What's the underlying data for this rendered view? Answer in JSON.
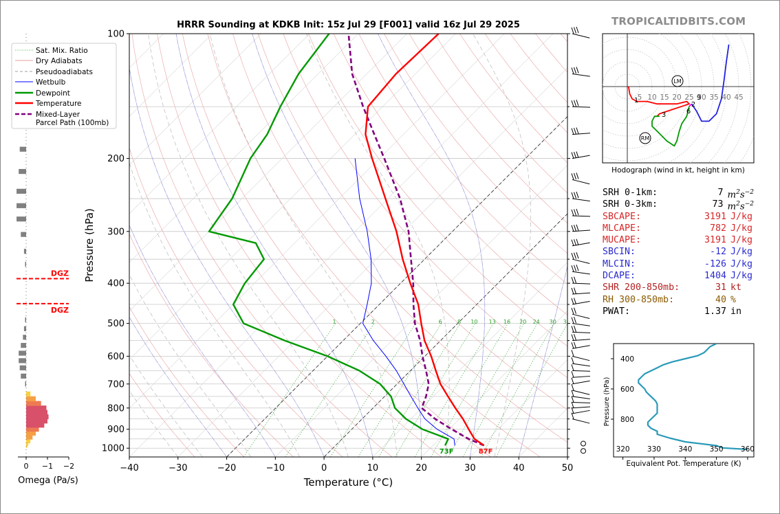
{
  "brand": "TROPICALTIDBITS.COM",
  "params": [
    {
      "label": "SRH 0-1km:",
      "value": "7",
      "unit_base": "m",
      "unit_exp": "2",
      "unit_mid": "s",
      "unit_exp2": "−2",
      "color": "#000000"
    },
    {
      "label": "SRH 0-3km:",
      "value": "73",
      "unit_base": "m",
      "unit_exp": "2",
      "unit_mid": "s",
      "unit_exp2": "−2",
      "color": "#000000"
    },
    {
      "label": "SBCAPE:",
      "value": "3191",
      "unit": "J/kg",
      "color": "#d62728"
    },
    {
      "label": "MLCAPE:",
      "value": "782",
      "unit": "J/kg",
      "color": "#d62728"
    },
    {
      "label": "MUCAPE:",
      "value": "3191",
      "unit": "J/kg",
      "color": "#d62728"
    },
    {
      "label": "SBCIN:",
      "value": "-12",
      "unit": "J/kg",
      "color": "#2a2ad0"
    },
    {
      "label": "MLCIN:",
      "value": "-126",
      "unit": "J/kg",
      "color": "#2a2ad0"
    },
    {
      "label": "DCAPE:",
      "value": "1404",
      "unit": "J/kg",
      "color": "#2a2ad0"
    },
    {
      "label": "SHR 200-850mb:",
      "value": "31",
      "unit": "kt",
      "color": "#b22222"
    },
    {
      "label": "RH 300-850mb:",
      "value": "40",
      "unit": "%",
      "color": "#8b5a00"
    },
    {
      "label": "PWAT:",
      "value": "1.37",
      "unit": "in",
      "color": "#000000"
    }
  ],
  "chart_data": [
    {
      "type": "line",
      "id": "skewt",
      "title": "HRRR Sounding at KDKB Init: 15z Jul 29 [F001] valid 16z Jul 29 2025",
      "xlabel": "Temperature (°C)",
      "ylabel": "Pressure (hPa)",
      "xlim": [
        -40,
        50
      ],
      "ylim": [
        1050,
        100
      ],
      "y_scale": "log",
      "x_ticks": [
        -40,
        -30,
        -20,
        -10,
        0,
        10,
        20,
        30,
        40,
        50
      ],
      "x_tick_labels": [
        "−40",
        "−30",
        "−20",
        "−10",
        "0",
        "10",
        "20",
        "30",
        "40",
        "50"
      ],
      "y_ticks": [
        100,
        200,
        300,
        400,
        500,
        600,
        700,
        800,
        900,
        1000
      ],
      "legend": {
        "position": "top-left",
        "entries": [
          {
            "label": "Sat. Mix. Ratio",
            "color": "#2ca02c",
            "style": "dotted"
          },
          {
            "label": "Dry Adiabats",
            "color": "#e8a0a0",
            "style": "solid"
          },
          {
            "label": "Pseudoadiabats",
            "color": "#a0a0a0",
            "style": "dashed"
          },
          {
            "label": "Wetbulb",
            "color": "#0000ff",
            "style": "solid"
          },
          {
            "label": "Dewpoint",
            "color": "#009900",
            "style": "solid-thick"
          },
          {
            "label": "Temperature",
            "color": "#ff0000",
            "style": "solid-thick"
          },
          {
            "label": "Mixed-Layer\nParcel Path (100mb)",
            "color": "#800080",
            "style": "dashed-thick"
          }
        ]
      },
      "mixing_ratio_labels": [
        "1",
        "2",
        "4",
        "6",
        "8",
        "10",
        "13",
        "16",
        "20",
        "24",
        "30",
        "36"
      ],
      "mixing_ratio_values": [
        1,
        2,
        4,
        6,
        8,
        10,
        13,
        16,
        20,
        24,
        30,
        36
      ],
      "surface_labels": {
        "temperature": "87F",
        "dewpoint": "73F"
      },
      "series": [
        {
          "name": "Temperature",
          "color": "#ff0000",
          "p": [
            985,
            950,
            900,
            850,
            800,
            750,
            700,
            650,
            600,
            550,
            500,
            450,
            400,
            350,
            300,
            250,
            200,
            175,
            150,
            125,
            100
          ],
          "t": [
            30.5,
            27.2,
            24.0,
            20.7,
            16.9,
            13.0,
            8.9,
            5.2,
            1.3,
            -3.3,
            -7.5,
            -12.0,
            -18.0,
            -24.5,
            -31.5,
            -40.5,
            -51.5,
            -57.8,
            -63.0,
            -64.0,
            -63.5
          ]
        },
        {
          "name": "Dewpoint",
          "color": "#009900",
          "p": [
            985,
            950,
            900,
            850,
            800,
            750,
            700,
            650,
            600,
            550,
            500,
            450,
            400,
            350,
            320,
            300,
            250,
            200,
            175,
            150,
            125,
            100
          ],
          "t": [
            22.5,
            21.8,
            14.5,
            9.0,
            4.5,
            1.3,
            -3.5,
            -10.5,
            -20.0,
            -32.0,
            -44.0,
            -50.0,
            -52.0,
            -53.0,
            -58.0,
            -70.0,
            -72.0,
            -76.5,
            -78.0,
            -81.0,
            -84.0,
            -86.0
          ]
        },
        {
          "name": "Wetbulb",
          "color": "#0000ff",
          "p": [
            985,
            950,
            900,
            850,
            800,
            750,
            700,
            650,
            600,
            550,
            500,
            450,
            400,
            350,
            300,
            250,
            200
          ],
          "t": [
            24.5,
            23.0,
            17.5,
            12.9,
            9.2,
            5.4,
            1.4,
            -2.9,
            -8.0,
            -13.8,
            -19.5,
            -22.5,
            -26.0,
            -31.0,
            -37.5,
            -45.8,
            -55.0
          ]
        },
        {
          "name": "Mixed-Layer Parcel Path (100mb)",
          "color": "#800080",
          "p": [
            985,
            950,
            900,
            850,
            800,
            750,
            700,
            650,
            600,
            550,
            500,
            450,
            400,
            350,
            300,
            250,
            200,
            175,
            150,
            125,
            100
          ],
          "t": [
            30.5,
            26.0,
            20.5,
            15.0,
            10.0,
            8.5,
            6.5,
            3.2,
            -0.5,
            -4.2,
            -8.8,
            -13.0,
            -17.4,
            -22.8,
            -29.0,
            -37.5,
            -49.0,
            -56.0,
            -64.0,
            -73.0,
            -82.0
          ]
        }
      ]
    },
    {
      "type": "line",
      "id": "hodograph",
      "xlabel": "Hodograph (wind in kt, height in km)",
      "ring_labels": [
        "5",
        "10",
        "15",
        "20",
        "25",
        "30",
        "35",
        "40",
        "45"
      ],
      "markers": [
        "LM",
        "RM"
      ],
      "height_labels": [
        "1",
        "2",
        "3",
        "6",
        "9"
      ],
      "series": [
        {
          "name": "0-3km",
          "color": "#ff0000",
          "u": [
            0.5,
            1,
            2,
            4,
            8,
            12,
            16,
            20,
            24,
            25,
            22,
            19,
            16,
            13,
            12
          ],
          "v": [
            0,
            -3,
            -5,
            -6,
            -6,
            -7,
            -7,
            -7,
            -6,
            -7,
            -8,
            -9,
            -10,
            -11,
            -12
          ]
        },
        {
          "name": "3-6km",
          "color": "#009900",
          "u": [
            13,
            11,
            10,
            10,
            12,
            16,
            19,
            20,
            21,
            22,
            24,
            25
          ],
          "v": [
            -12,
            -12,
            -14,
            -16,
            -18,
            -22,
            -24,
            -22,
            -18,
            -15,
            -12,
            -8
          ]
        },
        {
          "name": "6-9km",
          "color": "#ff00ff",
          "u": [
            25,
            26
          ],
          "v": [
            -8,
            -7
          ]
        },
        {
          "name": "9km+",
          "color": "#2222dd",
          "u": [
            26,
            28,
            30,
            33,
            36,
            38,
            39,
            40,
            41
          ],
          "v": [
            -7,
            -10,
            -14,
            -14,
            -11,
            -5,
            2,
            10,
            17
          ]
        }
      ]
    },
    {
      "type": "bar",
      "id": "omega",
      "xlabel": "Omega (Pa/s)",
      "x_ticks": [
        0,
        -1,
        -2
      ],
      "x_tick_labels": [
        "0",
        "−1",
        "−2"
      ],
      "dgz_label": "DGZ",
      "dgz_levels_hpa": [
        390,
        448
      ],
      "bars": [
        {
          "p": 985,
          "w": -0.05
        },
        {
          "p": 975,
          "w": -0.1
        },
        {
          "p": 960,
          "w": -0.2
        },
        {
          "p": 940,
          "w": -0.3
        },
        {
          "p": 920,
          "w": -0.45
        },
        {
          "p": 900,
          "w": -0.6
        },
        {
          "p": 880,
          "w": -0.85
        },
        {
          "p": 860,
          "w": -1.0
        },
        {
          "p": 840,
          "w": -1.05
        },
        {
          "p": 820,
          "w": -1.0
        },
        {
          "p": 800,
          "w": -0.95
        },
        {
          "p": 780,
          "w": -0.7
        },
        {
          "p": 760,
          "w": -0.45
        },
        {
          "p": 740,
          "w": -0.2
        },
        {
          "p": 700,
          "w": 0.05
        },
        {
          "p": 670,
          "w": 0.25
        },
        {
          "p": 640,
          "w": 0.3
        },
        {
          "p": 615,
          "w": 0.35
        },
        {
          "p": 590,
          "w": 0.35
        },
        {
          "p": 565,
          "w": 0.25
        },
        {
          "p": 540,
          "w": 0.15
        },
        {
          "p": 515,
          "w": 0.1
        },
        {
          "p": 490,
          "w": 0.05
        },
        {
          "p": 360,
          "w": 0.05
        },
        {
          "p": 335,
          "w": 0.1
        },
        {
          "p": 305,
          "w": 0.25
        },
        {
          "p": 280,
          "w": 0.45
        },
        {
          "p": 260,
          "w": 0.45
        },
        {
          "p": 240,
          "w": 0.45
        },
        {
          "p": 215,
          "w": 0.35
        },
        {
          "p": 190,
          "w": 0.3
        },
        {
          "p": 160,
          "w": 0.25
        },
        {
          "p": 145,
          "w": 0.15
        },
        {
          "p": 130,
          "w": 0.05
        }
      ]
    },
    {
      "type": "line",
      "id": "theta_e",
      "xlabel": "Equivalent Pot. Temperature (K)",
      "ylabel": "Pressure (hPa)",
      "xlim": [
        317,
        362
      ],
      "ylim": [
        1050,
        300
      ],
      "x_ticks": [
        320,
        330,
        340,
        350,
        360
      ],
      "y_ticks": [
        400,
        600,
        800
      ],
      "series": [
        {
          "name": "theta-e",
          "color": "#2a9ab8",
          "p": [
            1000,
            990,
            975,
            950,
            925,
            900,
            880,
            860,
            840,
            820,
            800,
            780,
            760,
            740,
            720,
            700,
            680,
            660,
            640,
            620,
            600,
            580,
            560,
            540,
            520,
            500,
            480,
            460,
            440,
            420,
            400,
            380,
            360,
            340,
            320,
            300
          ],
          "theta": [
            360,
            352,
            350,
            340,
            335,
            331,
            331,
            329,
            328,
            328,
            329,
            330,
            331,
            331,
            331,
            331,
            330.5,
            329.5,
            328.5,
            327.5,
            327,
            326,
            325,
            325,
            326,
            327,
            329,
            331,
            333,
            336,
            340,
            344,
            346,
            347,
            348,
            350
          ]
        }
      ]
    }
  ]
}
